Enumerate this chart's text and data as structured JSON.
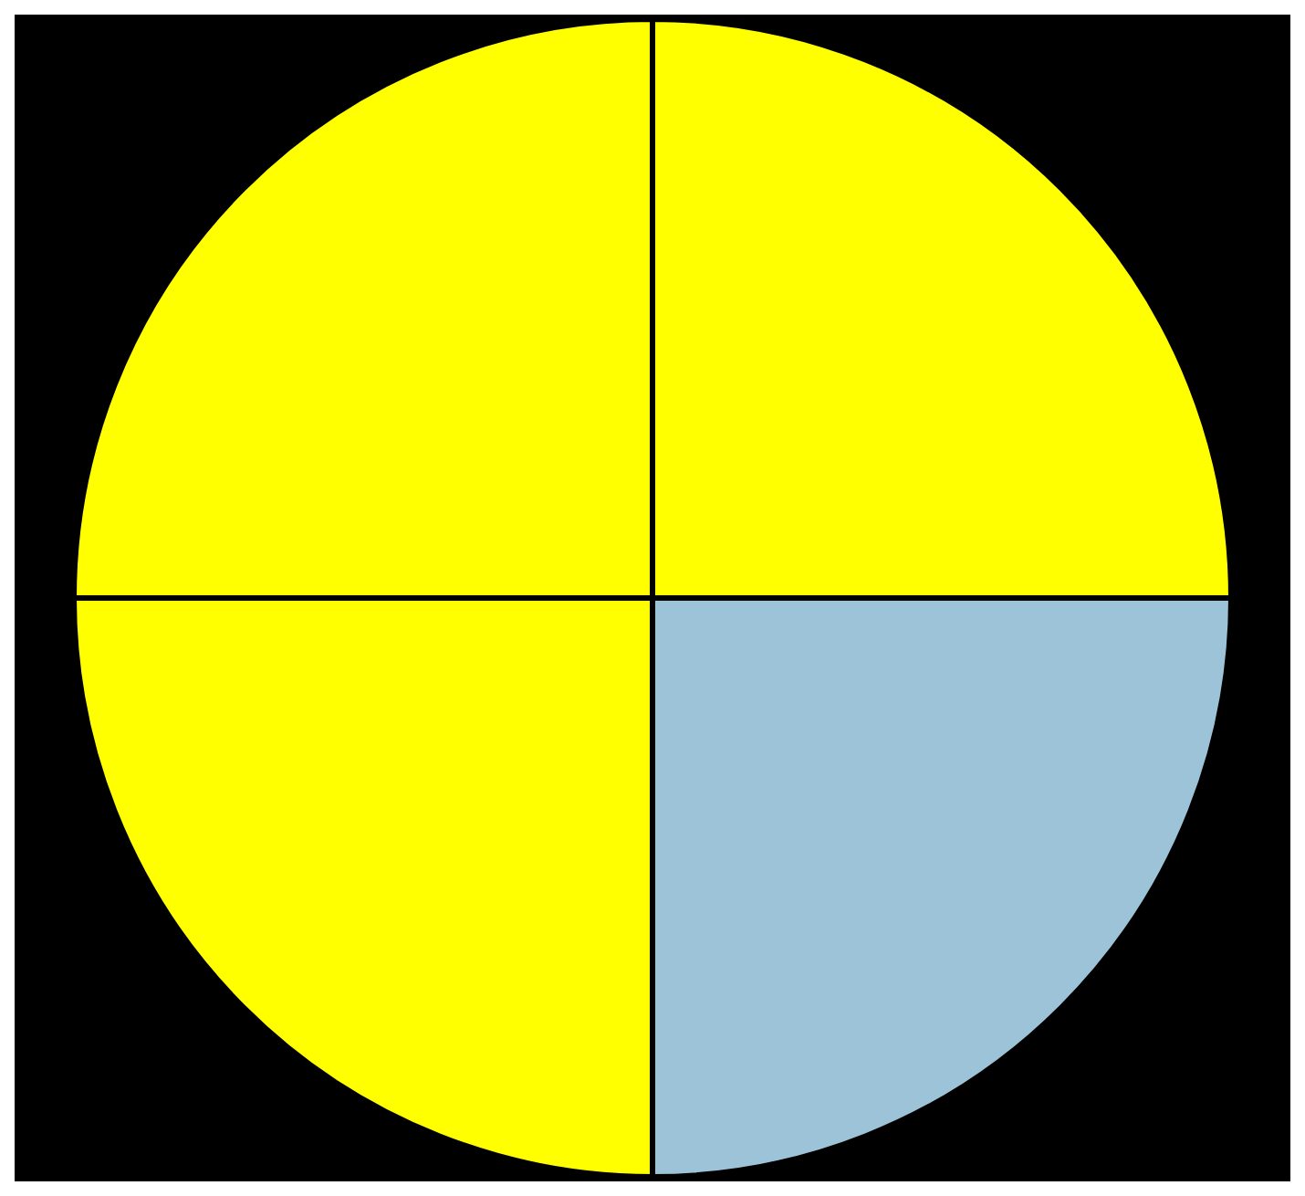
{
  "chart_data": {
    "type": "pie",
    "categories": [
      null,
      null,
      null,
      null
    ],
    "values": [
      25,
      25,
      25,
      25
    ],
    "colors": [
      "#ffff00",
      "#9dc3d9",
      "#ffff00",
      "#ffff00"
    ]
  }
}
